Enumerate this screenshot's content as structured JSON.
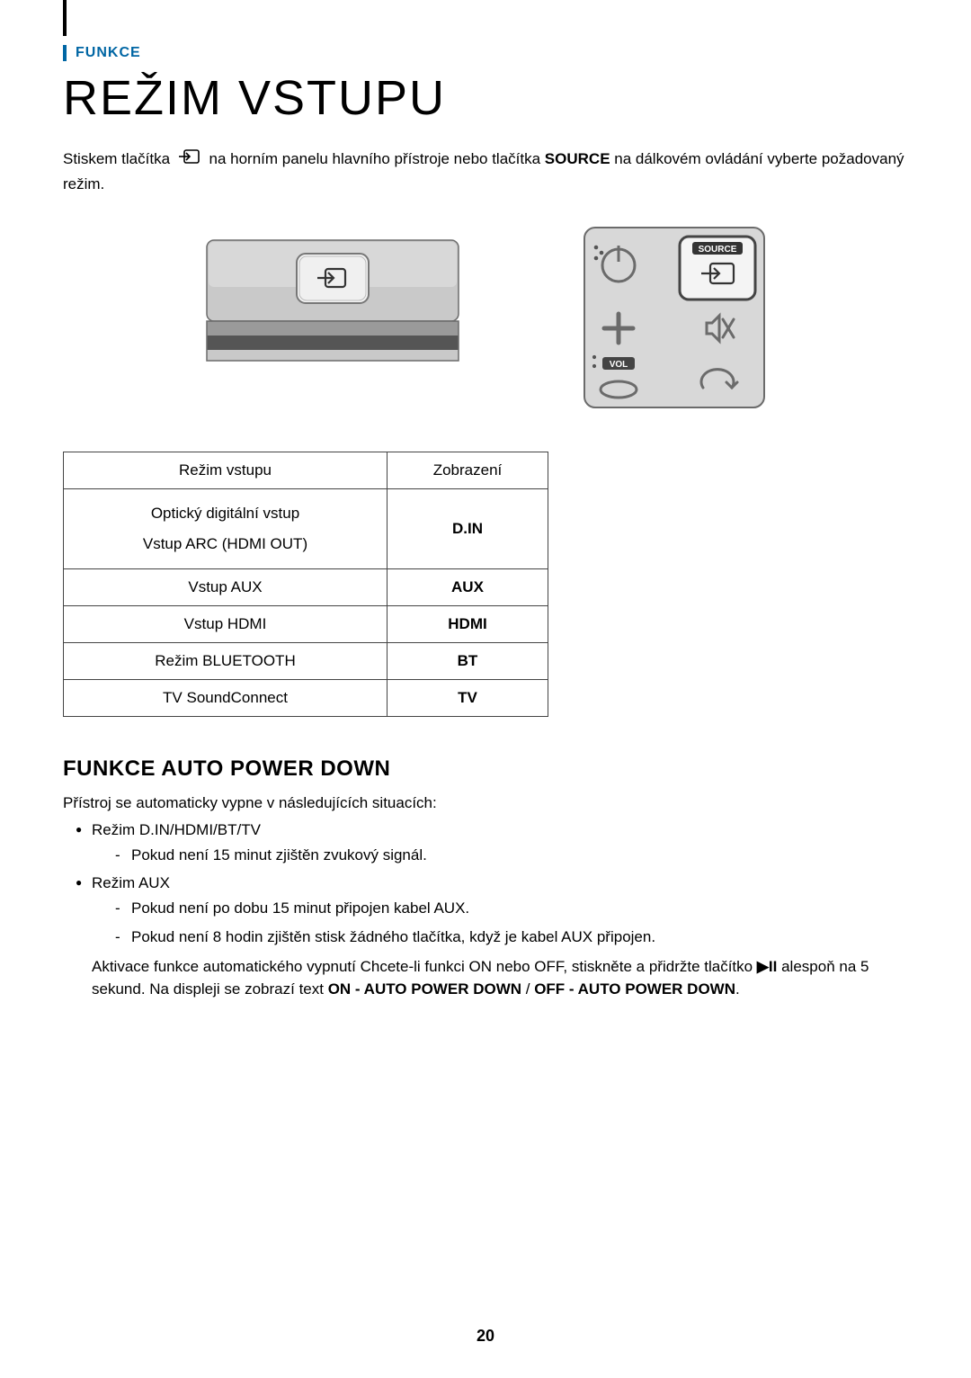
{
  "section_label": "FUNKCE",
  "title": "REŽIM VSTUPU",
  "intro_part1": "Stiskem tlačítka ",
  "intro_part2": " na horním panelu hlavního přístroje nebo tlačítka ",
  "intro_source_word": "SOURCE",
  "intro_part3": " na dálkovém ovládání vyberte požadovaný režim.",
  "remote_label_source": "SOURCE",
  "remote_label_vol": "VOL",
  "table": {
    "header_left": "Režim vstupu",
    "header_right": "Zobrazení",
    "row1_left_line1": "Optický digitální vstup",
    "row1_left_line2": "Vstup ARC (HDMI OUT)",
    "row1_right": "D.IN",
    "row2_left": "Vstup AUX",
    "row2_right": "AUX",
    "row3_left": "Vstup HDMI",
    "row3_right": "HDMI",
    "row4_left": "Režim BLUETOOTH",
    "row4_right": "BT",
    "row5_left": "TV SoundConnect",
    "row5_right": "TV"
  },
  "h2": "FUNKCE AUTO POWER DOWN",
  "apd_intro": "Přístroj se automaticky vypne v následujících situacích:",
  "bullet1": "Režim D.IN/HDMI/BT/TV",
  "bullet1_dash1": "Pokud není 15 minut zjištěn zvukový signál.",
  "bullet2": "Režim AUX",
  "bullet2_dash1": "Pokud není po dobu 15 minut připojen kabel AUX.",
  "bullet2_dash2": "Pokud není 8 hodin zjištěn stisk žádného tlačítka, když je kabel AUX připojen.",
  "apd_tail_1": "Aktivace funkce automatického vypnutí Chcete-li funkci ON nebo OFF, stiskněte a přidržte tlačítko ",
  "apd_tail_playpause": "▶II",
  "apd_tail_2": " alespoň na 5 sekund. Na displeji se zobrazí text ",
  "apd_bold1": "ON - AUTO POWER DOWN",
  "apd_slash": " / ",
  "apd_bold2": "OFF - AUTO POWER DOWN",
  "apd_period": ".",
  "page_number": "20",
  "colors": {
    "accent": "#0066a4",
    "text": "#000000",
    "border": "#444444",
    "remote_body": "#bfbfbf",
    "remote_border": "#5b5b5b",
    "soundbar_top": "#8a8a8a",
    "soundbar_bottom": "#3a3a3a"
  }
}
